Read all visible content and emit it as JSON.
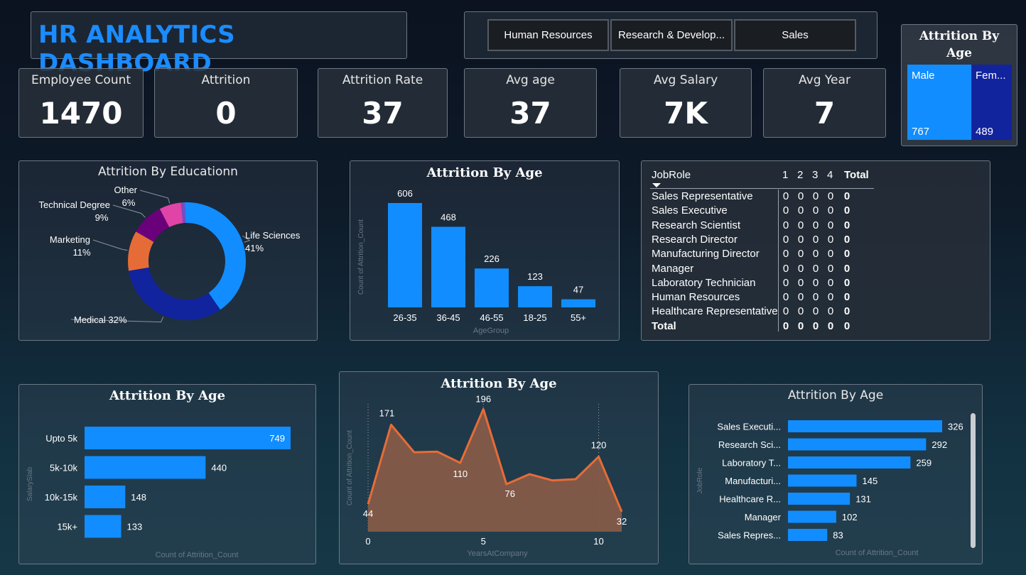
{
  "header": {
    "title": "HR ANALYTICS DASHBOARD"
  },
  "slicer": {
    "items": [
      "Human Resources",
      "Research & Develop...",
      "Sales"
    ]
  },
  "kpis": [
    {
      "label": "Employee Count",
      "value": "1470"
    },
    {
      "label": "Attrition",
      "value": "0"
    },
    {
      "label": "Attrition Rate",
      "value": "37"
    },
    {
      "label": "Avg age",
      "value": "37"
    },
    {
      "label": "Avg Salary",
      "value": "7K"
    },
    {
      "label": "Avg Year",
      "value": "7"
    }
  ],
  "gender_card": {
    "title": "Attrition By Age",
    "tiles": [
      {
        "label": "Male",
        "value": "767",
        "color": "#118dff"
      },
      {
        "label": "Fem...",
        "value": "489",
        "color": "#12239e"
      }
    ]
  },
  "matrix": {
    "header": {
      "col_label": "JobRole",
      "levels": [
        "1",
        "2",
        "3",
        "4"
      ],
      "total": "Total"
    },
    "rows": [
      {
        "label": "Sales Representative",
        "values": [
          "0",
          "0",
          "0",
          "0"
        ],
        "total": "0"
      },
      {
        "label": "Sales Executive",
        "values": [
          "0",
          "0",
          "0",
          "0"
        ],
        "total": "0"
      },
      {
        "label": "Research Scientist",
        "values": [
          "0",
          "0",
          "0",
          "0"
        ],
        "total": "0"
      },
      {
        "label": "Research Director",
        "values": [
          "0",
          "0",
          "0",
          "0"
        ],
        "total": "0"
      },
      {
        "label": "Manufacturing Director",
        "values": [
          "0",
          "0",
          "0",
          "0"
        ],
        "total": "0"
      },
      {
        "label": "Manager",
        "values": [
          "0",
          "0",
          "0",
          "0"
        ],
        "total": "0"
      },
      {
        "label": "Laboratory Technician",
        "values": [
          "0",
          "0",
          "0",
          "0"
        ],
        "total": "0"
      },
      {
        "label": "Human Resources",
        "values": [
          "0",
          "0",
          "0",
          "0"
        ],
        "total": "0"
      },
      {
        "label": "Healthcare Representative",
        "values": [
          "0",
          "0",
          "0",
          "0"
        ],
        "total": "0"
      }
    ],
    "total_row": {
      "label": "Total",
      "values": [
        "0",
        "0",
        "0",
        "0"
      ],
      "total": "0"
    },
    "sort_icon": "sort-desc-icon"
  },
  "colors": {
    "accent": "#118dff",
    "line": "#e66c37",
    "title": "#1a8cff"
  },
  "chart_data": [
    {
      "id": "education_donut",
      "type": "pie",
      "title": "Attrition By Educationn",
      "slices": [
        {
          "label": "Life Sciences",
          "value": 41,
          "display": "41%",
          "color": "#118dff"
        },
        {
          "label": "Medical",
          "value": 32,
          "display": "32%",
          "color": "#12239e"
        },
        {
          "label": "Marketing",
          "value": 11,
          "display": "11%",
          "color": "#e66c37"
        },
        {
          "label": "Technical Degree",
          "value": 9,
          "display": "9%",
          "color": "#6b007b"
        },
        {
          "label": "Other",
          "value": 6,
          "display": "6%",
          "color": "#e044a7"
        },
        {
          "label": "",
          "value": 1,
          "display": "",
          "color": "#744ec2"
        }
      ]
    },
    {
      "id": "age_bar",
      "type": "bar",
      "title": "Attrition By Age",
      "xlabel": "AgeGroup",
      "ylabel": "Count of Attrition_Count",
      "categories": [
        "26-35",
        "36-45",
        "46-55",
        "18-25",
        "55+"
      ],
      "values": [
        606,
        468,
        226,
        123,
        47
      ],
      "ylim": [
        0,
        700
      ]
    },
    {
      "id": "salary_hbar",
      "type": "bar",
      "orientation": "horizontal",
      "title": "Attrition By Age",
      "xlabel": "Count of Attrition_Count",
      "ylabel": "SalarySlab",
      "categories": [
        "Upto 5k",
        "5k-10k",
        "10k-15k",
        "15k+"
      ],
      "values": [
        749,
        440,
        148,
        133
      ],
      "xlim": [
        0,
        800
      ]
    },
    {
      "id": "years_area",
      "type": "area",
      "title": "Attrition By Age",
      "xlabel": "YearsAtCompany",
      "ylabel": "Count of Attrition_Count",
      "x": [
        0,
        1,
        2,
        3,
        4,
        5,
        6,
        7,
        8,
        9,
        10,
        11
      ],
      "y": [
        44,
        171,
        127,
        128,
        110,
        196,
        76,
        92,
        82,
        84,
        120,
        32
      ],
      "labeled_points": [
        0,
        1,
        4,
        5,
        6,
        10,
        11
      ],
      "xticks": [
        0,
        5,
        10
      ],
      "xlim": [
        0,
        11
      ],
      "ylim": [
        0,
        210
      ]
    },
    {
      "id": "jobrole_hbar",
      "type": "bar",
      "orientation": "horizontal",
      "title": "Attrition By Age",
      "xlabel": "Count of Attrition_Count",
      "ylabel": "JobRole",
      "categories": [
        "Sales Executi...",
        "Research Sci...",
        "Laboratory T...",
        "Manufacturi...",
        "Healthcare R...",
        "Manager",
        "Sales Repres..."
      ],
      "values": [
        326,
        292,
        259,
        145,
        131,
        102,
        83
      ],
      "xlim": [
        0,
        340
      ]
    }
  ]
}
